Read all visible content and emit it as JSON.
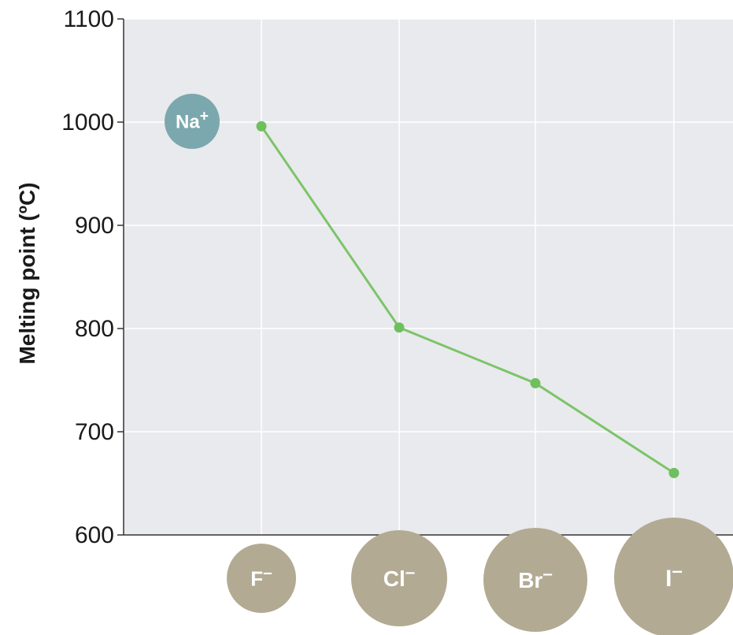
{
  "chart_data": {
    "type": "line",
    "title": "",
    "xlabel": "",
    "ylabel": "Melting point (ºC)",
    "ylim": [
      600,
      1100
    ],
    "yticks": [
      600,
      700,
      800,
      900,
      1000,
      1100
    ],
    "grid": true,
    "cation": {
      "symbol": "Na",
      "charge": "+"
    },
    "categories": [
      {
        "symbol": "F",
        "charge": "–"
      },
      {
        "symbol": "Cl",
        "charge": "–"
      },
      {
        "symbol": "Br",
        "charge": "–"
      },
      {
        "symbol": "I",
        "charge": "–"
      }
    ],
    "series": [
      {
        "values": [
          996,
          801,
          747,
          660
        ]
      }
    ]
  },
  "colors": {
    "plot_background": "#e9eaed",
    "gridline": "#ffffff",
    "line": "#7cc46a",
    "marker": "#6fbf5e",
    "cation_circle": "#7ba8ae",
    "anion_circle": "#b3aa94",
    "axis": "#333333"
  }
}
